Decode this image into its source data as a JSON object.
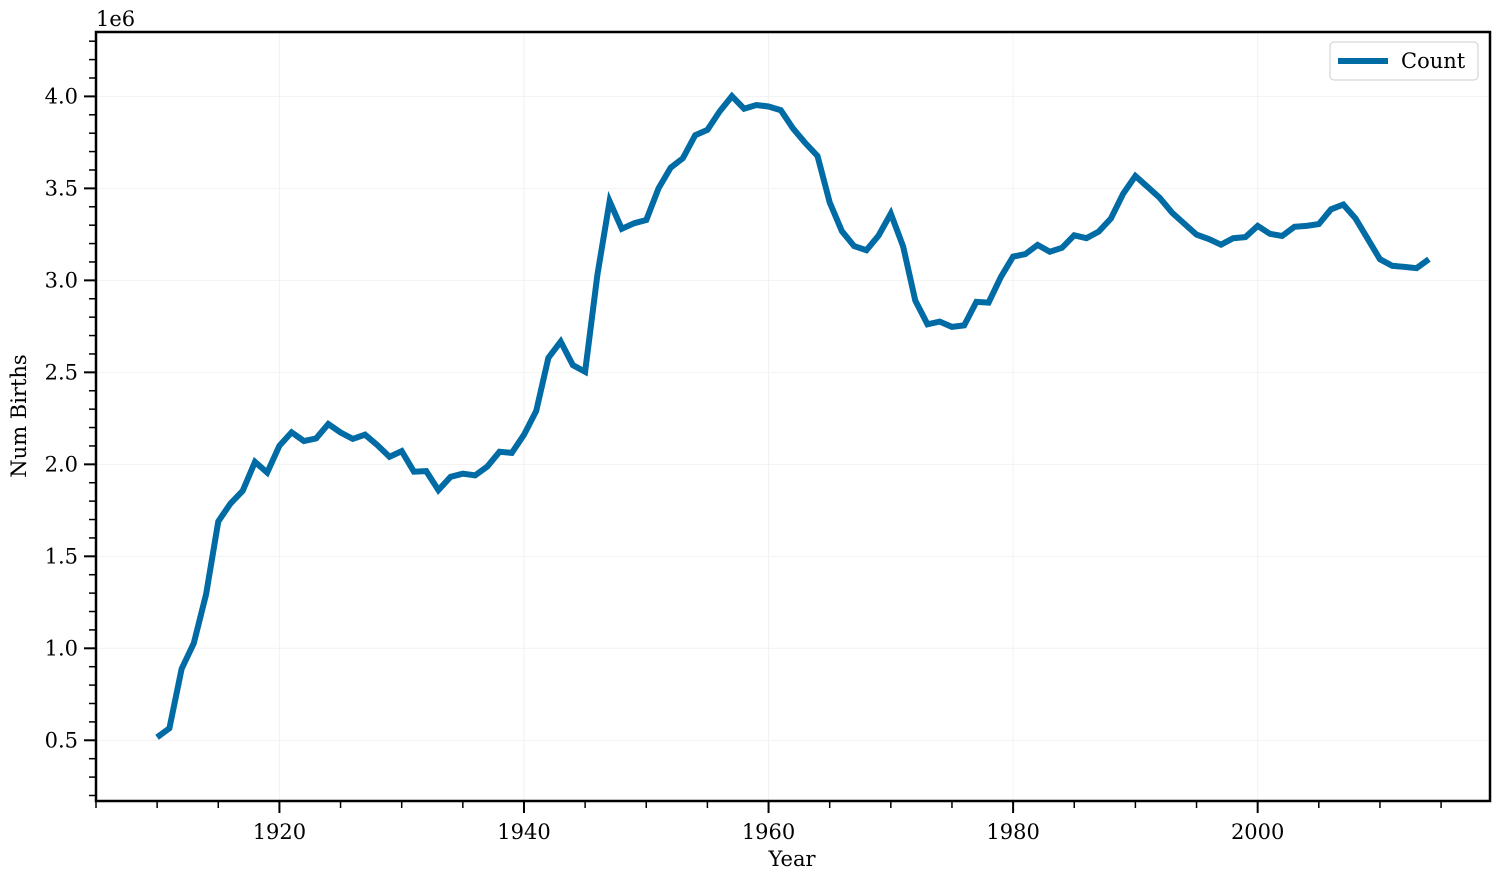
{
  "chart_data": {
    "type": "line",
    "xlabel": "Year",
    "ylabel": "Num Births",
    "y_offset_text": "1e6",
    "y_multiplier": 1000000,
    "xlim": [
      1905,
      2019
    ],
    "ylim": [
      170000,
      4350000
    ],
    "x_ticks": [
      1920,
      1940,
      1960,
      1980,
      2000
    ],
    "x_tick_labels": [
      "1920",
      "1940",
      "1960",
      "1980",
      "2000"
    ],
    "y_ticks": [
      500000,
      1000000,
      1500000,
      2000000,
      2500000,
      3000000,
      3500000,
      4000000
    ],
    "y_tick_labels": [
      "0.5",
      "1.0",
      "1.5",
      "2.0",
      "2.5",
      "3.0",
      "3.5",
      "4.0"
    ],
    "grid": true,
    "legend_position": "top-right",
    "line_color": "#006ba4",
    "series": [
      {
        "name": "Count",
        "x": [
          1910,
          1911,
          1912,
          1913,
          1914,
          1915,
          1916,
          1917,
          1918,
          1919,
          1920,
          1921,
          1922,
          1923,
          1924,
          1925,
          1926,
          1927,
          1928,
          1929,
          1930,
          1931,
          1932,
          1933,
          1934,
          1935,
          1936,
          1937,
          1938,
          1939,
          1940,
          1941,
          1942,
          1943,
          1944,
          1945,
          1946,
          1947,
          1948,
          1949,
          1950,
          1951,
          1952,
          1953,
          1954,
          1955,
          1956,
          1957,
          1958,
          1959,
          1960,
          1961,
          1962,
          1963,
          1964,
          1965,
          1966,
          1967,
          1968,
          1969,
          1970,
          1971,
          1972,
          1973,
          1974,
          1975,
          1976,
          1977,
          1978,
          1979,
          1980,
          1981,
          1982,
          1983,
          1984,
          1985,
          1986,
          1987,
          1988,
          1989,
          1990,
          1991,
          1992,
          1993,
          1994,
          1995,
          1996,
          1997,
          1998,
          1999,
          2000,
          2001,
          2002,
          2003,
          2004,
          2005,
          2006,
          2007,
          2008,
          2009,
          2010,
          2011,
          2012,
          2013,
          2014
        ],
        "y": [
          516000,
          565000,
          888000,
          1028000,
          1294000,
          1690000,
          1787000,
          1856000,
          2013000,
          1955000,
          2101000,
          2174000,
          2127000,
          2141000,
          2219000,
          2173000,
          2138000,
          2161000,
          2105000,
          2041000,
          2072000,
          1960000,
          1963000,
          1860000,
          1932000,
          1949000,
          1940000,
          1988000,
          2068000,
          2062000,
          2161000,
          2290000,
          2579000,
          2667000,
          2539000,
          2503000,
          3030000,
          3430000,
          3280000,
          3310000,
          3328000,
          3500000,
          3613000,
          3664000,
          3789000,
          3818000,
          3918000,
          4001000,
          3933000,
          3953000,
          3945000,
          3925000,
          3826000,
          3747000,
          3676000,
          3424000,
          3267000,
          3186000,
          3164000,
          3244000,
          3363000,
          3185000,
          2890000,
          2761000,
          2776000,
          2747000,
          2755000,
          2883000,
          2879000,
          3019000,
          3129000,
          3143000,
          3193000,
          3156000,
          3177000,
          3245000,
          3229000,
          3265000,
          3336000,
          3471000,
          3567000,
          3508000,
          3448000,
          3368000,
          3308000,
          3249000,
          3225000,
          3194000,
          3229000,
          3235000,
          3296000,
          3253000,
          3241000,
          3291000,
          3296000,
          3306000,
          3386000,
          3412000,
          3337000,
          3226000,
          3115000,
          3079000,
          3073000,
          3066000,
          3115000
        ]
      }
    ]
  }
}
